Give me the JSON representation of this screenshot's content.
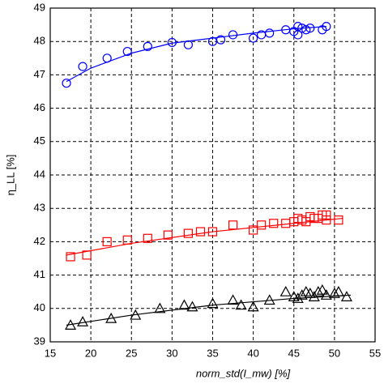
{
  "chart_data": {
    "type": "scatter",
    "xlabel": "norm_std(I_mw) [%]",
    "ylabel": "η_LL [%]",
    "xlim": [
      15,
      55
    ],
    "xticks": [
      15,
      20,
      25,
      30,
      35,
      40,
      45,
      50,
      55
    ],
    "ylim": [
      39,
      49
    ],
    "yticks": [
      39,
      40,
      41,
      42,
      43,
      44,
      45,
      46,
      47,
      48,
      49
    ],
    "grid": true,
    "series": [
      {
        "color": "#0000ff",
        "marker": "circle",
        "x": [
          17,
          19,
          22,
          24.5,
          27,
          30,
          32,
          35,
          36,
          37.5,
          40,
          41,
          42,
          44,
          45,
          45.5,
          46,
          46.5,
          47,
          48.5,
          49,
          45.5
        ],
        "values": [
          46.75,
          47.25,
          47.5,
          47.7,
          47.85,
          47.97,
          47.9,
          48.0,
          48.05,
          48.2,
          48.1,
          48.2,
          48.25,
          48.35,
          48.3,
          48.45,
          48.4,
          48.35,
          48.4,
          48.35,
          48.45,
          48.2
        ],
        "fit": {
          "x": [
            17,
            20,
            25,
            30,
            35,
            40,
            45,
            49
          ],
          "values": [
            46.8,
            47.2,
            47.65,
            47.95,
            48.1,
            48.25,
            48.38,
            48.45
          ]
        }
      },
      {
        "color": "#ff0000",
        "marker": "square",
        "x": [
          17.5,
          19.5,
          22,
          24.5,
          27,
          29.5,
          32,
          33.5,
          35,
          37.5,
          40,
          41,
          42.5,
          44,
          45,
          45.5,
          46,
          46.5,
          47,
          47.5,
          48,
          48.5,
          49,
          50.5,
          49
        ],
        "values": [
          41.55,
          41.6,
          42.0,
          42.05,
          42.1,
          42.2,
          42.25,
          42.3,
          42.3,
          42.5,
          42.35,
          42.5,
          42.55,
          42.55,
          42.6,
          42.7,
          42.65,
          42.6,
          42.75,
          42.7,
          42.7,
          42.8,
          42.8,
          42.65,
          42.65
        ],
        "fit": {
          "x": [
            17,
            25,
            35,
            45,
            51
          ],
          "values": [
            41.6,
            41.95,
            42.3,
            42.55,
            42.7
          ]
        }
      },
      {
        "color": "#000000",
        "marker": "triangle",
        "x": [
          17.5,
          19,
          22.5,
          25.5,
          28.5,
          31.5,
          32.5,
          35,
          37.5,
          38.5,
          40,
          42,
          44,
          45,
          46,
          46.5,
          47,
          47.5,
          48,
          48.5,
          49,
          50,
          50.5,
          51.5,
          45.5
        ],
        "values": [
          39.5,
          39.6,
          39.7,
          39.8,
          40.0,
          40.1,
          40.05,
          40.15,
          40.25,
          40.1,
          40.05,
          40.25,
          40.5,
          40.35,
          40.4,
          40.5,
          40.45,
          40.35,
          40.5,
          40.55,
          40.4,
          40.45,
          40.5,
          40.35,
          40.3
        ],
        "fit": {
          "x": [
            17,
            25,
            35,
            45,
            52
          ],
          "values": [
            39.5,
            39.8,
            40.1,
            40.3,
            40.4
          ]
        }
      }
    ]
  }
}
